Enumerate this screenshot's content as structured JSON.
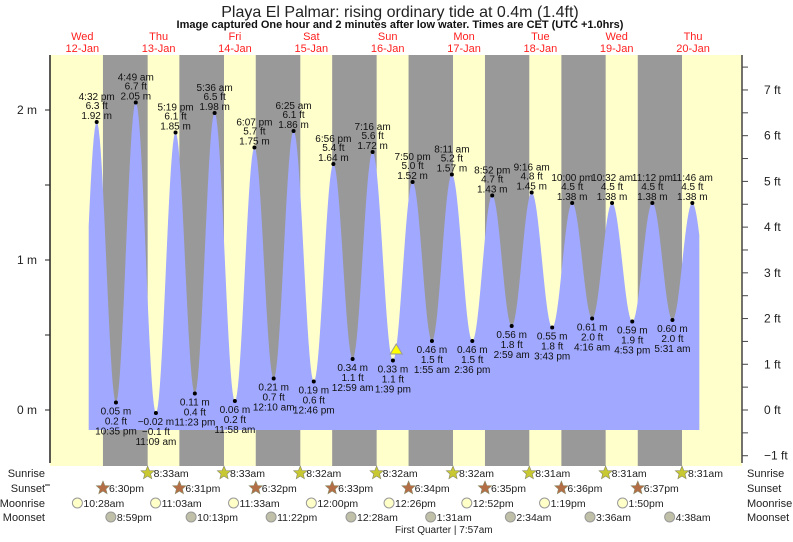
{
  "title": "Playa El Palmar: rising  ordinary tide at 0.4m (1.4ft)",
  "subtitle": "Image captured One hour and 2 minutes after low water. Times are CET (UTC +1.0hrs)",
  "colors": {
    "day": "#ffffcc",
    "night": "#999999",
    "water": "#a0a8ff",
    "date_label": "#ff2020",
    "sunrise": "#c8c832",
    "sunset": "#b46e46",
    "moonrise": "#ffffc8",
    "moonset": "#c0c0a8",
    "marker": "#ffff00"
  },
  "chart_data": {
    "type": "area",
    "title": "Playa El Palmar: rising  ordinary tide at 0.4m (1.4ft)",
    "days": [
      {
        "dow": "Wed",
        "date": "12-Jan",
        "day": 12
      },
      {
        "dow": "Thu",
        "date": "13-Jan",
        "day": 13
      },
      {
        "dow": "Fri",
        "date": "14-Jan",
        "day": 14
      },
      {
        "dow": "Sat",
        "date": "15-Jan",
        "day": 15
      },
      {
        "dow": "Sun",
        "date": "16-Jan",
        "day": 16
      },
      {
        "dow": "Mon",
        "date": "17-Jan",
        "day": 17
      },
      {
        "dow": "Tue",
        "date": "18-Jan",
        "day": 18
      },
      {
        "dow": "Wed",
        "date": "19-Jan",
        "day": 19
      },
      {
        "dow": "Thu",
        "date": "20-Jan",
        "day": 20
      }
    ],
    "y_left": {
      "unit": "m",
      "ticks": [
        "2 m",
        "1 m",
        "0 m"
      ],
      "tick_values": [
        2,
        1,
        0
      ]
    },
    "y_right": {
      "unit": "ft",
      "ticks": [
        "7 ft",
        "6 ft",
        "5 ft",
        "4 ft",
        "3 ft",
        "2 ft",
        "1 ft",
        "0 ft",
        "−1 ft"
      ],
      "tick_values": [
        7,
        6,
        5,
        4,
        3,
        2,
        1,
        0,
        -1
      ]
    },
    "ylim_m": [
      -0.3,
      2.36
    ],
    "xlim": [
      "12-Jan 01:50",
      "21-Jan 03:30"
    ],
    "grid": false,
    "extremes": [
      {
        "type": "high",
        "day": 12,
        "time": "4:32 pm",
        "ft": "6.3 ft",
        "m": "1.92 m",
        "value": 1.92
      },
      {
        "type": "low",
        "day": 12,
        "time": "10:35 pm",
        "ft": "0.2 ft",
        "m": "0.05 m",
        "value": 0.05
      },
      {
        "type": "high",
        "day": 13,
        "time": "4:49 am",
        "ft": "6.7 ft",
        "m": "2.05 m",
        "value": 2.05
      },
      {
        "type": "low",
        "day": 13,
        "time": "11:09 am",
        "ft": "−0.1 ft",
        "m": "−0.02 m",
        "value": -0.02
      },
      {
        "type": "high",
        "day": 13,
        "time": "5:19 pm",
        "ft": "6.1 ft",
        "m": "1.85 m",
        "value": 1.85
      },
      {
        "type": "low",
        "day": 13,
        "time": "11:23 pm",
        "ft": "0.4 ft",
        "m": "0.11 m",
        "value": 0.11
      },
      {
        "type": "high",
        "day": 14,
        "time": "5:36 am",
        "ft": "6.5 ft",
        "m": "1.98 m",
        "value": 1.98
      },
      {
        "type": "low",
        "day": 14,
        "time": "11:58 am",
        "ft": "0.2 ft",
        "m": "0.06 m",
        "value": 0.06
      },
      {
        "type": "high",
        "day": 14,
        "time": "6:07 pm",
        "ft": "5.7 ft",
        "m": "1.75 m",
        "value": 1.75
      },
      {
        "type": "low",
        "day": 15,
        "time": "12:10 am",
        "ft": "0.7 ft",
        "m": "0.21 m",
        "value": 0.21
      },
      {
        "type": "high",
        "day": 15,
        "time": "6:25 am",
        "ft": "6.1 ft",
        "m": "1.86 m",
        "value": 1.86
      },
      {
        "type": "low",
        "day": 15,
        "time": "12:46 pm",
        "ft": "0.6 ft",
        "m": "0.19 m",
        "value": 0.19
      },
      {
        "type": "high",
        "day": 15,
        "time": "6:56 pm",
        "ft": "5.4 ft",
        "m": "1.64 m",
        "value": 1.64
      },
      {
        "type": "low",
        "day": 16,
        "time": "12:59 am",
        "ft": "1.1 ft",
        "m": "0.34 m",
        "value": 0.34
      },
      {
        "type": "high",
        "day": 16,
        "time": "7:16 am",
        "ft": "5.6 ft",
        "m": "1.72 m",
        "value": 1.72
      },
      {
        "type": "low",
        "day": 16,
        "time": "1:39 pm",
        "ft": "1.1 ft",
        "m": "0.33 m",
        "value": 0.33
      },
      {
        "type": "high",
        "day": 16,
        "time": "7:50 pm",
        "ft": "5.0 ft",
        "m": "1.52 m",
        "value": 1.52
      },
      {
        "type": "low",
        "day": 17,
        "time": "1:55 am",
        "ft": "1.5 ft",
        "m": "0.46 m",
        "value": 0.46
      },
      {
        "type": "high",
        "day": 17,
        "time": "8:11 am",
        "ft": "5.2 ft",
        "m": "1.57 m",
        "value": 1.57
      },
      {
        "type": "low",
        "day": 17,
        "time": "2:36 pm",
        "ft": "1.5 ft",
        "m": "0.46 m",
        "value": 0.46
      },
      {
        "type": "high",
        "day": 17,
        "time": "8:52 pm",
        "ft": "4.7 ft",
        "m": "1.43 m",
        "value": 1.43
      },
      {
        "type": "low",
        "day": 18,
        "time": "2:59 am",
        "ft": "1.8 ft",
        "m": "0.56 m",
        "value": 0.56
      },
      {
        "type": "high",
        "day": 18,
        "time": "9:16 am",
        "ft": "4.8 ft",
        "m": "1.45 m",
        "value": 1.45
      },
      {
        "type": "low",
        "day": 18,
        "time": "3:43 pm",
        "ft": "1.8 ft",
        "m": "0.55 m",
        "value": 0.55
      },
      {
        "type": "high",
        "day": 18,
        "time": "10:00 pm",
        "ft": "4.5 ft",
        "m": "1.38 m",
        "value": 1.38
      },
      {
        "type": "low",
        "day": 19,
        "time": "4:16 am",
        "ft": "2.0 ft",
        "m": "0.61 m",
        "value": 0.61
      },
      {
        "type": "high",
        "day": 19,
        "time": "10:32 am",
        "ft": "4.5 ft",
        "m": "1.38 m",
        "value": 1.38
      },
      {
        "type": "low",
        "day": 19,
        "time": "4:53 pm",
        "ft": "1.9 ft",
        "m": "0.59 m",
        "value": 0.59
      },
      {
        "type": "high",
        "day": 19,
        "time": "11:12 pm",
        "ft": "4.5 ft",
        "m": "1.38 m",
        "value": 1.38
      },
      {
        "type": "low",
        "day": 20,
        "time": "5:31 am",
        "ft": "2.0 ft",
        "m": "0.60 m",
        "value": 0.6
      },
      {
        "type": "high",
        "day": 20,
        "time": "11:46 am",
        "ft": "4.5 ft",
        "m": "1.38 m",
        "value": 1.38
      }
    ],
    "current": {
      "day": 16,
      "time": "2:41 pm",
      "value": 0.4
    },
    "rows": [
      {
        "label": "Sunrise",
        "icon": "sunrise-star",
        "events": [
          {
            "day": 13,
            "time": "8:33am"
          },
          {
            "day": 14,
            "time": "8:33am"
          },
          {
            "day": 15,
            "time": "8:32am"
          },
          {
            "day": 16,
            "time": "8:32am"
          },
          {
            "day": 17,
            "time": "8:32am"
          },
          {
            "day": 18,
            "time": "8:31am"
          },
          {
            "day": 19,
            "time": "8:31am"
          },
          {
            "day": 20,
            "time": "8:31am"
          }
        ]
      },
      {
        "label": "Sunset",
        "icon": "sunset-star",
        "events": [
          {
            "day": 12,
            "time": "6:30pm"
          },
          {
            "day": 13,
            "time": "6:31pm"
          },
          {
            "day": 14,
            "time": "6:32pm"
          },
          {
            "day": 15,
            "time": "6:33pm"
          },
          {
            "day": 16,
            "time": "6:34pm"
          },
          {
            "day": 17,
            "time": "6:35pm"
          },
          {
            "day": 18,
            "time": "6:36pm"
          },
          {
            "day": 19,
            "time": "6:37pm"
          }
        ]
      },
      {
        "label": "Moonrise",
        "icon": "moonrise-circle",
        "events": [
          {
            "day": 12,
            "time": "10:28am"
          },
          {
            "day": 13,
            "time": "11:03am"
          },
          {
            "day": 14,
            "time": "11:33am"
          },
          {
            "day": 15,
            "time": "12:00pm"
          },
          {
            "day": 16,
            "time": "12:26pm"
          },
          {
            "day": 17,
            "time": "12:52pm"
          },
          {
            "day": 18,
            "time": "1:19pm"
          },
          {
            "day": 19,
            "time": "1:50pm"
          }
        ]
      },
      {
        "label": "Moonset",
        "icon": "moonset-circle",
        "events": [
          {
            "day": 12,
            "time": "8:59pm"
          },
          {
            "day": 13,
            "time": "10:13pm"
          },
          {
            "day": 14,
            "time": "11:22pm"
          },
          {
            "day": 16,
            "time": "12:28am"
          },
          {
            "day": 17,
            "time": "1:31am"
          },
          {
            "day": 18,
            "time": "2:34am"
          },
          {
            "day": 19,
            "time": "3:36am"
          },
          {
            "day": 20,
            "time": "4:38am"
          }
        ]
      }
    ],
    "moon_phase": "First Quarter | 7:57am"
  }
}
